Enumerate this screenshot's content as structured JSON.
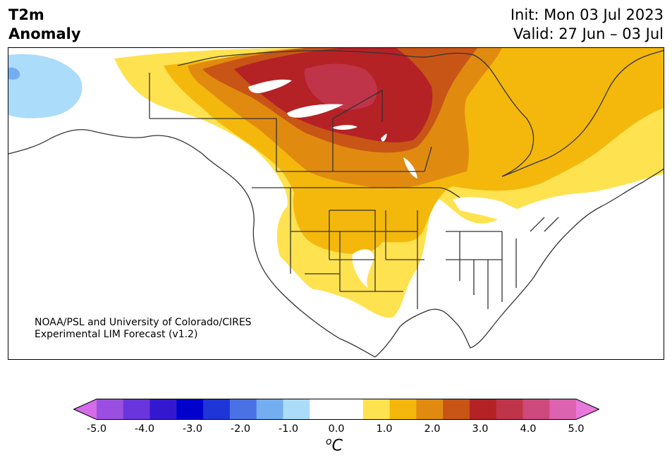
{
  "header": {
    "title_line1": "T2m",
    "title_line2": "Anomaly",
    "init": "Init: Mon 03 Jul 2023",
    "valid": "Valid: 27 Jun – 03 Jul"
  },
  "credit": {
    "line1": "NOAA/PSL and University of Colorado/CIRES",
    "line2": "Experimental LIM Forecast (v1.2)"
  },
  "colorbar": {
    "unit_base": "C",
    "unit_sup": "o",
    "min": -5.0,
    "max": 5.0,
    "ticks": [
      "-5.0",
      "-4.0",
      "-3.0",
      "-2.0",
      "-1.0",
      "0.0",
      "1.0",
      "2.0",
      "3.0",
      "4.0",
      "5.0"
    ],
    "colors": [
      "#d46be8",
      "#9b4fe0",
      "#6a35dc",
      "#3418d0",
      "#0000cc",
      "#2035d8",
      "#4b72e4",
      "#75aef0",
      "#abdcfa",
      "#ffffff",
      "#ffffff",
      "#ffe24f",
      "#f4b80c",
      "#e08b10",
      "#c85516",
      "#b42226",
      "#c0344a",
      "#cf4a7c",
      "#dd62b0",
      "#e878dc"
    ]
  },
  "map_legend": {
    "pale_yellow": "#ffe24f",
    "gold": "#f4b80c",
    "orange": "#e08b10",
    "dark_orange": "#c85516",
    "red": "#b42226",
    "crimson": "#c0344a",
    "light_blue": "#abdcfa",
    "blue": "#75aef0"
  }
}
